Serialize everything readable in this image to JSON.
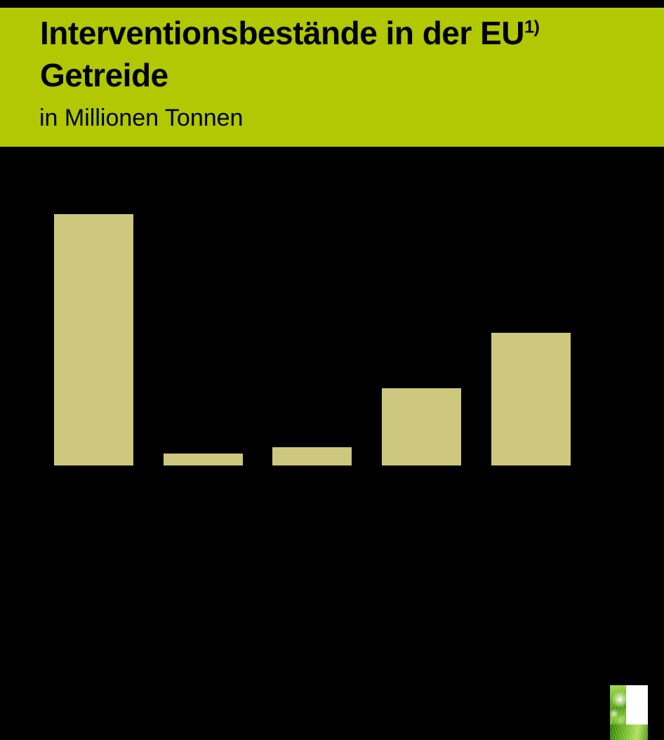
{
  "header": {
    "title_line1": "Interventionsbestände in der EU",
    "title_superscript": "1)",
    "title_line2": "Getreide",
    "subtitle": "in Millionen Tonnen"
  },
  "colors": {
    "header_background": "#b1c803",
    "header_text": "#000000",
    "chart_background": "#000000",
    "bar_fill": "#cdc87d"
  },
  "chart_data": {
    "type": "bar",
    "title": "Interventionsbestände in der EU – Getreide",
    "ylabel": "in Millionen Tonnen",
    "categories": [
      "",
      "",
      "",
      "",
      ""
    ],
    "values": [
      100,
      4.7,
      7.3,
      30.7,
      52.8
    ],
    "values_unit": "percent of tallest bar (no axis or data labels visible in image)",
    "ylim": [
      0,
      100
    ],
    "grid": false,
    "legend": false,
    "axis_labels_visible": false,
    "bar_color": "#cdc87d",
    "background": "#000000"
  },
  "logo": {
    "name": "green grass L-shaped logo"
  }
}
